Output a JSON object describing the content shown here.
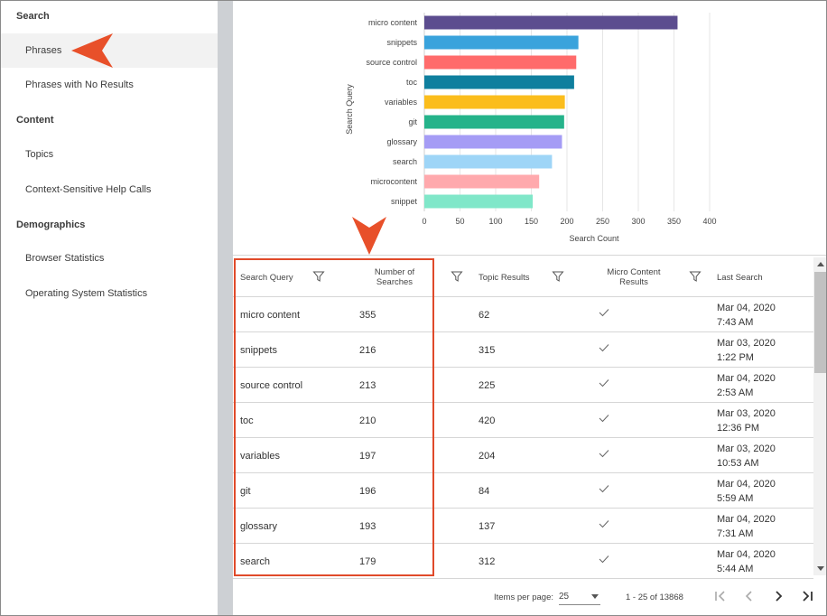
{
  "sidebar": {
    "sections": [
      {
        "heading": "Search",
        "items": [
          {
            "label": "Phrases",
            "active": true
          },
          {
            "label": "Phrases with No Results",
            "active": false
          }
        ]
      },
      {
        "heading": "Content",
        "items": [
          {
            "label": "Topics",
            "active": false
          },
          {
            "label": "Context-Sensitive Help Calls",
            "active": false
          }
        ]
      },
      {
        "heading": "Demographics",
        "items": [
          {
            "label": "Browser Statistics",
            "active": false
          },
          {
            "label": "Operating System Statistics",
            "active": false
          }
        ]
      }
    ]
  },
  "chart_data": {
    "type": "bar",
    "orientation": "horizontal",
    "categories": [
      "micro content",
      "snippets",
      "source control",
      "toc",
      "variables",
      "git",
      "glossary",
      "search",
      "microcontent",
      "snippet"
    ],
    "values": [
      355,
      216,
      213,
      210,
      197,
      196,
      193,
      179,
      161,
      152
    ],
    "colors": [
      "#5c4d8f",
      "#3aa3dc",
      "#ff6b6b",
      "#0f7f9e",
      "#fbbd1c",
      "#25b38a",
      "#a59cf5",
      "#9ed5f7",
      "#ffa9ad",
      "#80e7c9"
    ],
    "xlabel": "Search Count",
    "ylabel": "Search Query",
    "xlim": [
      0,
      400
    ],
    "xticks": [
      0,
      50,
      100,
      150,
      200,
      250,
      300,
      350,
      400
    ],
    "grid": true
  },
  "table": {
    "columns": [
      "Search Query",
      "Number of Searches",
      "Topic Results",
      "Micro Content Results",
      "Last Search"
    ],
    "rows": [
      {
        "query": "micro content",
        "count": "355",
        "topic": "62",
        "micro": true,
        "date": "Mar 04, 2020",
        "time": "7:43 AM"
      },
      {
        "query": "snippets",
        "count": "216",
        "topic": "315",
        "micro": true,
        "date": "Mar 03, 2020",
        "time": "1:22 PM"
      },
      {
        "query": "source control",
        "count": "213",
        "topic": "225",
        "micro": true,
        "date": "Mar 04, 2020",
        "time": "2:53 AM"
      },
      {
        "query": "toc",
        "count": "210",
        "topic": "420",
        "micro": true,
        "date": "Mar 03, 2020",
        "time": "12:36 PM"
      },
      {
        "query": "variables",
        "count": "197",
        "topic": "204",
        "micro": true,
        "date": "Mar 03, 2020",
        "time": "10:53 AM"
      },
      {
        "query": "git",
        "count": "196",
        "topic": "84",
        "micro": true,
        "date": "Mar 04, 2020",
        "time": "5:59 AM"
      },
      {
        "query": "glossary",
        "count": "193",
        "topic": "137",
        "micro": true,
        "date": "Mar 04, 2020",
        "time": "7:31 AM"
      },
      {
        "query": "search",
        "count": "179",
        "topic": "312",
        "micro": true,
        "date": "Mar 04, 2020",
        "time": "5:44 AM"
      }
    ]
  },
  "pager": {
    "items_per_page_label": "Items per page:",
    "items_per_page": "25",
    "range": "1 - 25 of 13868"
  },
  "colors": {
    "accent": "#e8502a",
    "highlight_border": "#e04a2a",
    "active_bg": "#f2f2f2"
  }
}
